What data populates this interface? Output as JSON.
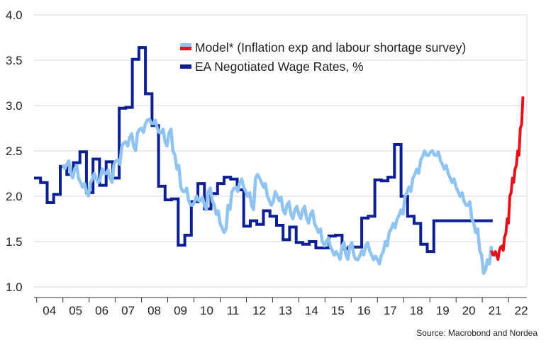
{
  "chart_data": {
    "type": "line",
    "ylim": [
      1.0,
      4.0
    ],
    "yticks": [
      1.0,
      1.5,
      2.0,
      2.5,
      3.0,
      3.5,
      4.0
    ],
    "ytick_labels": [
      "1.0",
      "1.5",
      "2.0",
      "2.5",
      "3.0",
      "3.5",
      "4.0"
    ],
    "xlim": [
      2003.9,
      2022.7
    ],
    "xtick_labels": [
      "04",
      "05",
      "06",
      "07",
      "08",
      "09",
      "10",
      "11",
      "12",
      "13",
      "14",
      "15",
      "16",
      "17",
      "18",
      "19",
      "20",
      "21",
      "22"
    ],
    "xtick_years": [
      2004,
      2005,
      2006,
      2007,
      2008,
      2009,
      2010,
      2011,
      2012,
      2013,
      2014,
      2015,
      2016,
      2017,
      2018,
      2019,
      2020,
      2021,
      2022
    ],
    "grid": true,
    "legend_position": "top-center",
    "source": "Source: Macrobond and Nordea",
    "series": [
      {
        "name": "Model* (Inflation exp and labour shortage survey)",
        "color": "#8fc3f2",
        "forecast_color": "#e8111b",
        "x": [
          2005.0,
          2005.15,
          2005.3,
          2005.45,
          2005.6,
          2005.75,
          2005.9,
          2006.05,
          2006.2,
          2006.35,
          2006.5,
          2006.65,
          2006.8,
          2006.95,
          2007.1,
          2007.25,
          2007.4,
          2007.55,
          2007.7,
          2007.85,
          2008.0,
          2008.15,
          2008.3,
          2008.45,
          2008.6,
          2008.75,
          2008.9,
          2009.05,
          2009.2,
          2009.35,
          2009.5,
          2009.65,
          2009.8,
          2009.95,
          2010.1,
          2010.25,
          2010.4,
          2010.55,
          2010.7,
          2010.85,
          2011.0,
          2011.15,
          2011.3,
          2011.45,
          2011.6,
          2011.75,
          2011.9,
          2012.05,
          2012.2,
          2012.35,
          2012.5,
          2012.65,
          2012.8,
          2012.95,
          2013.1,
          2013.25,
          2013.4,
          2013.55,
          2013.7,
          2013.85,
          2014.0,
          2014.15,
          2014.3,
          2014.45,
          2014.6,
          2014.75,
          2014.9,
          2015.05,
          2015.2,
          2015.35,
          2015.5,
          2015.65,
          2015.8,
          2015.95,
          2016.1,
          2016.25,
          2016.4,
          2016.55,
          2016.7,
          2016.85,
          2017.0,
          2017.15,
          2017.3,
          2017.45,
          2017.6,
          2017.75,
          2017.9,
          2018.05,
          2018.2,
          2018.35,
          2018.5,
          2018.65,
          2018.8,
          2018.95,
          2019.1,
          2019.25,
          2019.4,
          2019.55,
          2019.7,
          2019.85,
          2020.0,
          2020.15,
          2020.3,
          2020.45,
          2020.6,
          2020.75,
          2020.9,
          2021.05,
          2021.2,
          2021.35
        ],
        "values": [
          2.35,
          2.35,
          2.25,
          2.3,
          2.2,
          2.1,
          2.05,
          2.15,
          2.25,
          2.15,
          2.3,
          2.25,
          2.2,
          2.35,
          2.4,
          2.55,
          2.6,
          2.65,
          2.55,
          2.7,
          2.75,
          2.8,
          2.85,
          2.8,
          2.75,
          2.7,
          2.6,
          2.7,
          2.5,
          2.3,
          2.1,
          2.05,
          1.95,
          1.9,
          2.0,
          1.95,
          1.9,
          2.05,
          1.95,
          1.8,
          1.7,
          1.6,
          1.9,
          2.05,
          2.1,
          2.15,
          2.1,
          2.0,
          1.9,
          2.2,
          2.2,
          2.1,
          2.0,
          1.9,
          2.05,
          1.95,
          1.85,
          1.9,
          1.8,
          1.85,
          1.8,
          1.85,
          1.75,
          1.8,
          1.7,
          1.6,
          1.5,
          1.5,
          1.45,
          1.35,
          1.35,
          1.45,
          1.35,
          1.45,
          1.35,
          1.3,
          1.4,
          1.45,
          1.4,
          1.3,
          1.3,
          1.35,
          1.5,
          1.6,
          1.7,
          1.75,
          1.85,
          2.0,
          2.1,
          2.2,
          2.3,
          2.4,
          2.5,
          2.45,
          2.5,
          2.45,
          2.4,
          2.3,
          2.25,
          2.15,
          2.1,
          2.0,
          1.95,
          1.9,
          1.75,
          1.6,
          1.4,
          1.15,
          1.3,
          1.45
        ],
        "forecast_x": [
          2021.35,
          2021.45,
          2021.55,
          2021.65,
          2021.75,
          2021.85,
          2021.95,
          2022.05,
          2022.15,
          2022.25,
          2022.35,
          2022.45,
          2022.55
        ],
        "forecast_values": [
          1.4,
          1.35,
          1.35,
          1.4,
          1.45,
          1.55,
          1.75,
          2.0,
          2.2,
          2.3,
          2.5,
          2.75,
          3.1
        ]
      },
      {
        "name": "EA Negotiated Wage Rates, %",
        "color": "#0d1f96",
        "x": [
          2003.9,
          2004.15,
          2004.4,
          2004.65,
          2004.9,
          2005.15,
          2005.4,
          2005.65,
          2005.9,
          2006.15,
          2006.4,
          2006.65,
          2006.9,
          2007.15,
          2007.4,
          2007.65,
          2007.9,
          2008.15,
          2008.4,
          2008.65,
          2008.9,
          2009.15,
          2009.4,
          2009.65,
          2009.9,
          2010.15,
          2010.4,
          2010.65,
          2010.9,
          2011.15,
          2011.4,
          2011.65,
          2011.9,
          2012.15,
          2012.4,
          2012.65,
          2012.9,
          2013.15,
          2013.4,
          2013.65,
          2013.9,
          2014.15,
          2014.4,
          2014.65,
          2014.9,
          2015.15,
          2015.4,
          2015.65,
          2015.9,
          2016.15,
          2016.4,
          2016.65,
          2016.9,
          2017.15,
          2017.4,
          2017.65,
          2017.9,
          2018.15,
          2018.4,
          2018.65,
          2018.9,
          2019.15,
          2019.4,
          2019.65,
          2019.9,
          2020.15,
          2020.4,
          2020.65,
          2020.9,
          2021.15,
          2021.4
        ],
        "values": [
          2.2,
          2.15,
          1.93,
          2.02,
          2.33,
          2.24,
          2.37,
          2.49,
          2.04,
          2.41,
          2.12,
          2.38,
          2.2,
          2.97,
          2.98,
          3.51,
          3.64,
          3.13,
          2.78,
          2.11,
          1.96,
          1.97,
          1.46,
          1.57,
          1.94,
          2.14,
          1.86,
          2.03,
          2.14,
          2.21,
          2.19,
          2.07,
          1.67,
          1.73,
          1.69,
          1.84,
          1.78,
          1.68,
          1.52,
          1.66,
          1.49,
          1.47,
          1.5,
          1.43,
          1.43,
          1.56,
          1.57,
          1.42,
          1.44,
          1.44,
          1.76,
          1.78,
          2.18,
          2.17,
          2.21,
          2.57,
          2.0,
          1.78,
          1.7,
          1.47,
          1.39,
          1.73,
          1.73,
          1.73,
          1.73,
          1.73,
          1.73,
          1.73,
          1.73,
          1.73,
          1.73
        ]
      }
    ]
  }
}
